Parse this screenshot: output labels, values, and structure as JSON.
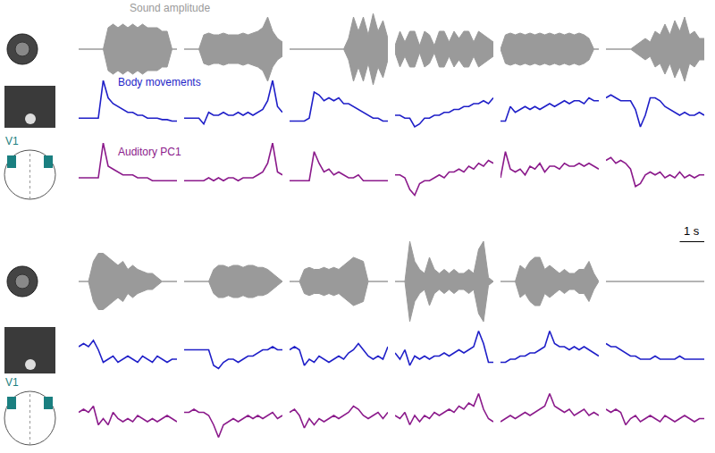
{
  "chart_data": {
    "type": "line",
    "tick_labels": false,
    "x": [
      0,
      0.2,
      0.4,
      0.6,
      0.8,
      1,
      1.2,
      1.4,
      1.6,
      1.8,
      2,
      2.2,
      2.4,
      2.6,
      2.8,
      3,
      3.2,
      3.4,
      3.6,
      3.8,
      4
    ],
    "xlim": [
      0,
      4
    ],
    "ylim": [
      -1,
      1
    ],
    "series": [
      {
        "name": "Sound amplitude",
        "color": "#9a9a9a",
        "type": "area"
      },
      {
        "name": "Body movements",
        "color": "#1f1fc8",
        "type": "line"
      },
      {
        "name": "Auditory PC1",
        "color": "#8b1a8b",
        "type": "line"
      }
    ],
    "annotations": [
      {
        "text": "V1",
        "color": "#1a7f80"
      }
    ],
    "scale_bar": {
      "value": 1,
      "label": "1 s"
    },
    "panels": [
      {
        "values": [
          [
            0,
            0,
            0,
            0,
            0,
            0,
            0.6,
            0.7,
            0.6,
            0.7,
            0.6,
            0.7,
            0.6,
            0.7,
            0.6,
            0.6,
            0.6,
            0.5,
            0.5,
            0,
            0
          ],
          [
            -0.3,
            -0.3,
            -0.3,
            -0.3,
            -0.3,
            1.0,
            0.4,
            0.2,
            0.1,
            0,
            -0.1,
            -0.1,
            -0.2,
            -0.2,
            -0.3,
            -0.3,
            -0.3,
            -0.35,
            -0.35,
            -0.4,
            -0.4
          ],
          [
            -0.2,
            -0.2,
            -0.2,
            -0.2,
            -0.2,
            1.0,
            0.2,
            0.1,
            0,
            -0.1,
            -0.1,
            -0.1,
            -0.2,
            -0.2,
            -0.2,
            -0.3,
            -0.3,
            -0.3,
            -0.3,
            -0.3,
            -0.3
          ]
        ]
      },
      {
        "values": [
          [
            0,
            0,
            0,
            0,
            0.4,
            0.45,
            0.4,
            0.4,
            0.45,
            0.4,
            0.4,
            0.4,
            0.45,
            0.4,
            0.45,
            0.5,
            0.6,
            0.9,
            0.5,
            0.3,
            0.2
          ],
          [
            -0.3,
            -0.3,
            -0.3,
            -0.3,
            -0.5,
            -0.1,
            -0.2,
            -0.2,
            -0.1,
            -0.2,
            -0.2,
            -0.1,
            -0.2,
            -0.1,
            -0.2,
            -0.1,
            0,
            0.3,
            1.0,
            0.1,
            -0.1
          ],
          [
            -0.3,
            -0.3,
            -0.3,
            -0.3,
            -0.3,
            -0.2,
            -0.3,
            -0.2,
            -0.3,
            -0.2,
            -0.2,
            -0.3,
            -0.2,
            -0.2,
            -0.2,
            -0.1,
            0,
            0.3,
            1.0,
            0,
            -0.1
          ]
        ]
      },
      {
        "values": [
          [
            0,
            0,
            0,
            0,
            0,
            0,
            0,
            0,
            0,
            0,
            0,
            0,
            0.3,
            0.9,
            0.5,
            0.9,
            0.4,
            1.0,
            0.5,
            0.8,
            0.3
          ],
          [
            -0.4,
            -0.4,
            -0.4,
            -0.4,
            -0.3,
            0.6,
            0.5,
            0.3,
            0.4,
            0.3,
            0.4,
            0.2,
            0.2,
            0.1,
            0,
            -0.1,
            -0.2,
            -0.3,
            -0.3,
            -0.4,
            -0.4
          ],
          [
            -0.3,
            -0.3,
            -0.3,
            -0.3,
            -0.3,
            0.7,
            0.3,
            0,
            0.1,
            -0.1,
            0,
            -0.1,
            -0.2,
            -0.2,
            -0.1,
            -0.3,
            -0.3,
            -0.3,
            -0.3,
            -0.3,
            -0.3
          ]
        ]
      },
      {
        "values": [
          [
            0.1,
            0.5,
            0.2,
            0.5,
            0.5,
            0.1,
            0.5,
            0.4,
            0.1,
            0.5,
            0.5,
            0.2,
            0.5,
            0.3,
            0.5,
            0.5,
            0.2,
            0.5,
            0.4,
            0.3,
            0.2
          ],
          [
            -0.2,
            -0.2,
            -0.3,
            -0.3,
            -0.6,
            -0.5,
            -0.3,
            -0.3,
            -0.2,
            -0.2,
            -0.1,
            -0.1,
            0,
            0,
            0.1,
            0.1,
            0.2,
            0.2,
            0.3,
            0.2,
            0.4
          ],
          [
            -0.1,
            -0.1,
            -0.2,
            -0.6,
            -0.8,
            -0.4,
            -0.3,
            -0.3,
            -0.2,
            -0.1,
            -0.2,
            0,
            0,
            0.1,
            0,
            0.2,
            0.1,
            0.3,
            0.2,
            0.4,
            0.3
          ]
        ]
      },
      {
        "values": [
          [
            0,
            0.4,
            0.45,
            0.4,
            0.45,
            0.4,
            0.45,
            0.4,
            0.45,
            0.4,
            0.45,
            0.4,
            0.45,
            0.4,
            0.45,
            0.4,
            0.45,
            0.4,
            0.3,
            0,
            0
          ],
          [
            -0.4,
            -0.4,
            0.1,
            -0.1,
            0,
            0.1,
            0,
            0.1,
            0,
            0.1,
            0.2,
            0.1,
            0.2,
            0.3,
            0.2,
            0.3,
            0.3,
            0.2,
            0.4,
            0.3,
            0.3
          ],
          [
            -0.2,
            0.7,
            0.1,
            0,
            0.1,
            -0.1,
            0.2,
            0.1,
            0.3,
            0,
            0.2,
            0.2,
            0.1,
            0.3,
            0.2,
            0.2,
            0.3,
            0.2,
            0.3,
            0.2,
            0.1
          ]
        ]
      },
      {
        "values": [
          [
            0,
            0,
            0,
            0,
            0,
            0,
            0.1,
            0.2,
            0.3,
            0.2,
            0.5,
            0.4,
            0.7,
            0.4,
            0.8,
            0.5,
            0.9,
            0.4,
            0.5,
            0.3,
            0.3
          ],
          [
            0.4,
            0.5,
            0.4,
            0.3,
            0.3,
            0.3,
            0.0,
            -0.6,
            -0.2,
            0.4,
            0.4,
            0.3,
            0.1,
            0,
            -0.1,
            -0.2,
            -0.1,
            -0.2,
            -0.2,
            -0.1,
            -0.2
          ],
          [
            0.4,
            0.5,
            0.3,
            0.4,
            0.3,
            0.1,
            -0.5,
            -0.4,
            -0.1,
            0,
            -0.1,
            0,
            -0.2,
            -0.1,
            -0.2,
            0,
            -0.2,
            -0.1,
            -0.2,
            -0.1,
            -0.1
          ]
        ]
      },
      {
        "values": [
          [
            0,
            0,
            0,
            0.5,
            0.7,
            0.7,
            0.6,
            0.5,
            0.4,
            0.5,
            0.3,
            0.4,
            0.3,
            0.25,
            0.2,
            0.2,
            0.1,
            0,
            0,
            0,
            0
          ],
          [
            0.2,
            0.3,
            0.2,
            0.4,
            0.1,
            -0.3,
            -0.2,
            -0.1,
            -0.3,
            -0.2,
            -0.1,
            -0.2,
            -0.3,
            -0.1,
            -0.2,
            -0.3,
            -0.1,
            -0.2,
            -0.3,
            -0.2,
            -0.2
          ],
          [
            0.1,
            0.2,
            0.1,
            0.3,
            -0.3,
            -0.1,
            -0.3,
            0.1,
            -0.1,
            -0.2,
            -0.1,
            -0.2,
            0,
            -0.1,
            -0.2,
            -0.1,
            -0.2,
            -0.1,
            0,
            -0.1,
            -0.2
          ]
        ]
      },
      {
        "values": [
          [
            0,
            0,
            0,
            0,
            0,
            0,
            0.3,
            0.4,
            0.4,
            0.35,
            0.4,
            0.4,
            0.35,
            0.4,
            0.4,
            0.35,
            0.35,
            0.3,
            0.2,
            0.1,
            0
          ],
          [
            0.1,
            0.1,
            0.1,
            0.1,
            0.1,
            0.1,
            -0.4,
            -0.5,
            -0.3,
            -0.2,
            -0.2,
            -0.3,
            -0.2,
            -0.1,
            -0.1,
            0,
            0.1,
            0.1,
            0.2,
            0.1,
            0.1
          ],
          [
            0.1,
            0.1,
            0.2,
            0.1,
            0.1,
            0,
            -0.3,
            -0.7,
            -0.3,
            -0.2,
            -0.1,
            -0.2,
            -0.1,
            0,
            -0.1,
            0,
            -0.1,
            0,
            0.1,
            -0.1,
            0
          ]
        ]
      },
      {
        "values": [
          [
            0,
            0,
            0,
            0.3,
            0.35,
            0.3,
            0.3,
            0.35,
            0.3,
            0.35,
            0.3,
            0.4,
            0.5,
            0.6,
            0.55,
            0.5,
            0,
            0,
            0,
            0,
            0
          ],
          [
            0.1,
            0.2,
            0.1,
            -0.4,
            -0.2,
            -0.3,
            -0.1,
            -0.2,
            -0.3,
            -0.2,
            -0.1,
            -0.2,
            0,
            0.1,
            0.3,
            0.1,
            -0.1,
            -0.2,
            -0.1,
            -0.2,
            0.2
          ],
          [
            0.1,
            0.2,
            0,
            -0.4,
            -0.1,
            -0.3,
            -0.1,
            -0.2,
            -0.1,
            0,
            -0.1,
            0,
            0.1,
            0.3,
            0.2,
            0,
            -0.1,
            0,
            0.1,
            -0.1,
            0.1
          ]
        ]
      },
      {
        "values": [
          [
            0,
            0,
            0,
            1.0,
            0.5,
            0.3,
            0.2,
            0.6,
            0.3,
            0.2,
            0.3,
            0.2,
            0.3,
            0.2,
            0.2,
            0.3,
            0.2,
            0.8,
            1.0,
            0.1,
            0
          ],
          [
            0,
            -0.2,
            0.1,
            -0.4,
            -0.1,
            -0.2,
            -0.1,
            -0.2,
            -0.1,
            -0.1,
            0,
            -0.1,
            0,
            0.1,
            0,
            0.1,
            0.2,
            0.7,
            0.3,
            -0.3,
            -0.3
          ],
          [
            0,
            -0.1,
            0.1,
            -0.3,
            0,
            -0.2,
            0,
            -0.1,
            0.1,
            0,
            0.1,
            0.2,
            0.1,
            0.3,
            0.2,
            0.4,
            0.3,
            0.7,
            0.2,
            -0.1,
            -0.2
          ]
        ]
      },
      {
        "values": [
          [
            0,
            0,
            0,
            0,
            0.4,
            0.3,
            0.5,
            0.6,
            0.6,
            0.3,
            0.4,
            0.3,
            0.2,
            0.3,
            0.2,
            0.2,
            0.3,
            0.3,
            0.5,
            0.2,
            0
          ],
          [
            -0.3,
            -0.3,
            -0.2,
            -0.2,
            -0.1,
            -0.1,
            0,
            0,
            0.1,
            0.2,
            0.7,
            0.3,
            0.2,
            0.2,
            0.1,
            0.2,
            0.1,
            0.2,
            0.1,
            0,
            -0.1
          ],
          [
            -0.2,
            -0.1,
            0,
            -0.1,
            0,
            0.1,
            0,
            0.1,
            0.2,
            0.3,
            0.7,
            0.3,
            0.2,
            0.1,
            0.2,
            0,
            0.1,
            0.2,
            0,
            0.1,
            0
          ]
        ]
      },
      {
        "values": [
          [
            0,
            0,
            0,
            0,
            0,
            0,
            0,
            0,
            0,
            0,
            0,
            0,
            0,
            0,
            0,
            0,
            0,
            0,
            0,
            0,
            0
          ],
          [
            0.3,
            0.2,
            0.2,
            0.1,
            0,
            -0.1,
            -0.1,
            -0.2,
            -0.2,
            -0.2,
            -0.1,
            -0.2,
            -0.2,
            -0.2,
            -0.2,
            -0.1,
            -0.2,
            -0.2,
            -0.2,
            -0.2,
            -0.2
          ],
          [
            0.2,
            0.1,
            0.2,
            0.1,
            -0.3,
            -0.1,
            0,
            -0.2,
            -0.1,
            0,
            -0.1,
            -0.2,
            0,
            -0.1,
            -0.2,
            -0.1,
            0,
            -0.1,
            -0.2,
            -0.1,
            -0.1
          ]
        ]
      }
    ]
  }
}
